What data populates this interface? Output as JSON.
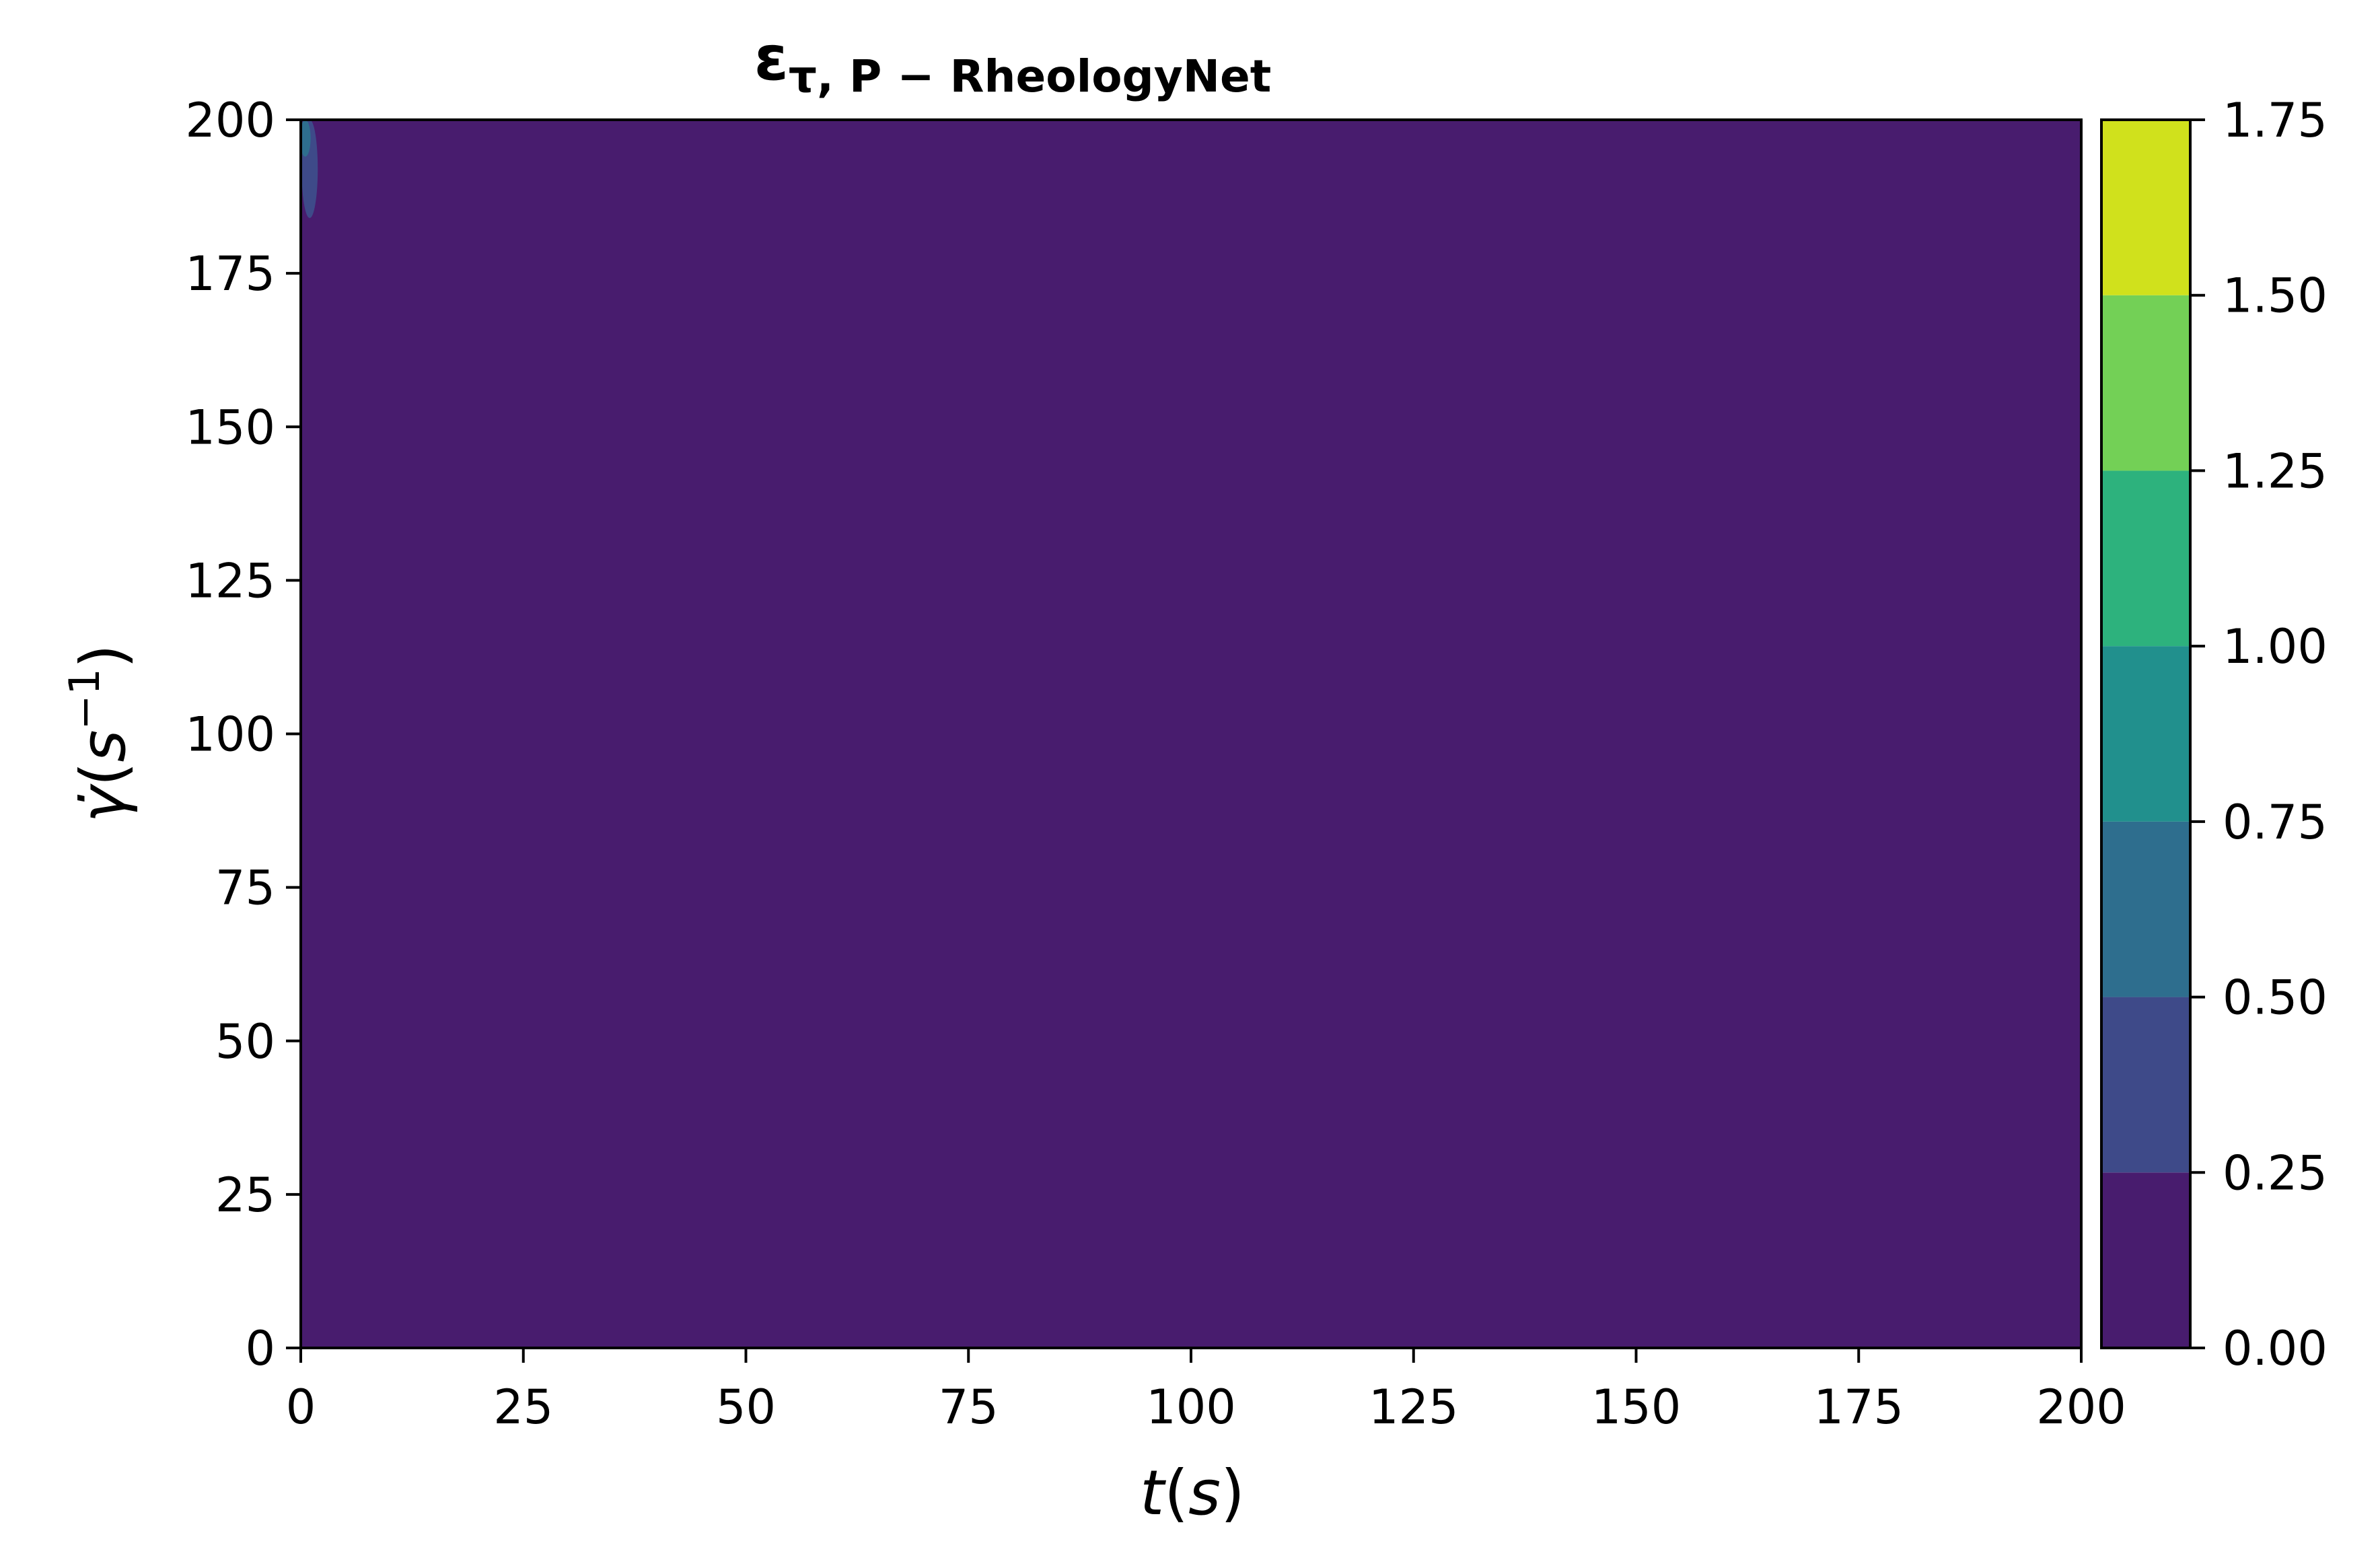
{
  "chart_data": {
    "type": "heatmap",
    "subtype": "filled-contour",
    "title": {
      "main": "ε",
      "subscript": "τ, P − RheologyNet"
    },
    "xlabel": {
      "var": "t",
      "open": "(",
      "unit": "s",
      "close": ")"
    },
    "ylabel": {
      "var": "γ̇",
      "open": "(",
      "unit": "s",
      "sup": "−1",
      "close": ")"
    },
    "xlim": [
      0,
      200
    ],
    "ylim": [
      0,
      200
    ],
    "xticks": [
      0,
      25,
      50,
      75,
      100,
      125,
      150,
      175,
      200
    ],
    "yticks": [
      0,
      25,
      50,
      75,
      100,
      125,
      150,
      175,
      200
    ],
    "xtick_labels": [
      "0",
      "25",
      "50",
      "75",
      "100",
      "125",
      "150",
      "175",
      "200"
    ],
    "ytick_labels": [
      "0",
      "25",
      "50",
      "75",
      "100",
      "125",
      "150",
      "175",
      "200"
    ],
    "background_level": [
      0.0,
      0.25
    ],
    "features": [
      {
        "level": [
          0.25,
          0.5
        ],
        "t": 1.0,
        "gamma_dot_range": [
          184,
          200
        ]
      },
      {
        "level": [
          0.5,
          0.75
        ],
        "t": 0.5,
        "gamma_dot_range": [
          194,
          200
        ]
      }
    ],
    "grid": false,
    "colorbar": {
      "position": "right",
      "levels": [
        0.0,
        0.25,
        0.5,
        0.75,
        1.0,
        1.25,
        1.5,
        1.75
      ],
      "tick_labels": [
        "0.00",
        "0.25",
        "0.50",
        "0.75",
        "1.00",
        "1.25",
        "1.50",
        "1.75"
      ],
      "colors": [
        "#481c6e",
        "#3e4a89",
        "#2e6e8e",
        "#21908d",
        "#2db27d",
        "#73d056",
        "#d0e11c"
      ]
    }
  }
}
